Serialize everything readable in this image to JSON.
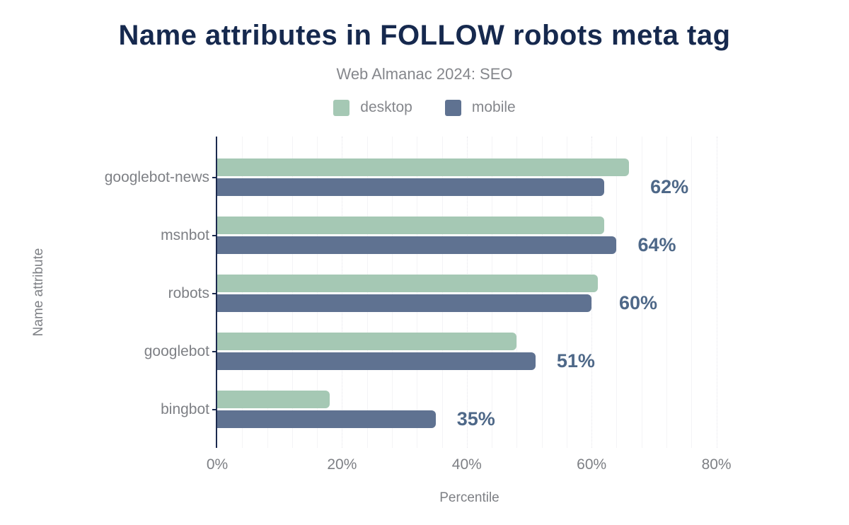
{
  "chart_data": {
    "type": "bar",
    "orientation": "horizontal",
    "title": "Name attributes in FOLLOW robots meta tag",
    "subtitle": "Web Almanac 2024: SEO",
    "xlabel": "Percentile",
    "ylabel": "Name attribute",
    "categories": [
      "googlebot-news",
      "msnbot",
      "robots",
      "googlebot",
      "bingbot"
    ],
    "series": [
      {
        "name": "desktop",
        "color": "#a5c8b4",
        "values": [
          66,
          62,
          61,
          48,
          18
        ]
      },
      {
        "name": "mobile",
        "color": "#5f7291",
        "values": [
          62,
          64,
          60,
          51,
          35
        ]
      }
    ],
    "data_labels": [
      "62%",
      "64%",
      "60%",
      "51%",
      "35%"
    ],
    "data_labels_series": "mobile",
    "x_ticks": [
      "0%",
      "20%",
      "40%",
      "60%",
      "80%"
    ],
    "x_tick_values": [
      0,
      20,
      40,
      60,
      80
    ],
    "xlim": [
      0,
      80
    ],
    "minor_grid_step_pct": 4,
    "grid": "vertical",
    "legend_position": "top"
  },
  "colors": {
    "title": "#16294e",
    "subtitle": "#85878c",
    "axis_text": "#7e8085",
    "value_label": "#4e6888",
    "axis_line": "#1b2a4e",
    "desktop": "#a5c8b4",
    "mobile": "#5f7291",
    "background": "#ffffff"
  }
}
